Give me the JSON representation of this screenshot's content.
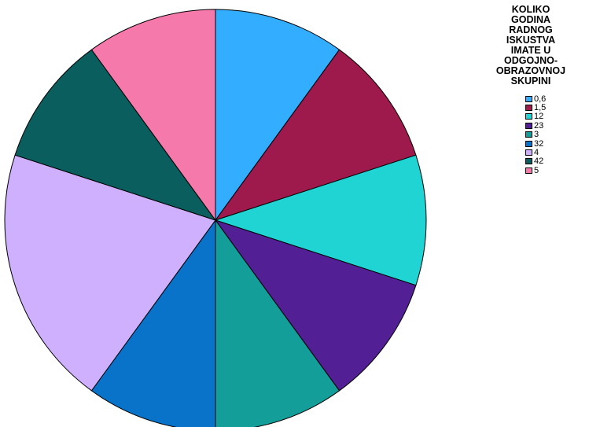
{
  "chart_data": {
    "type": "pie",
    "title": "KOLIKO\nGODINA\nRADNOG\nISKUSTVA\nIMATE U\nODGOJNO-\nOBRAZOVNOJ\nSKUPINI",
    "categories": [
      "0,6",
      "1,5",
      "12",
      "23",
      "3",
      "32",
      "4",
      "42",
      "5"
    ],
    "values": [
      1,
      1,
      1,
      1,
      1,
      1,
      2,
      1,
      1
    ],
    "colors": [
      "#33adff",
      "#9e1a4d",
      "#21d4d4",
      "#521f94",
      "#149e99",
      "#0873c9",
      "#cfb0ff",
      "#0b5e5e",
      "#f57aab"
    ],
    "legend_position": "right"
  }
}
